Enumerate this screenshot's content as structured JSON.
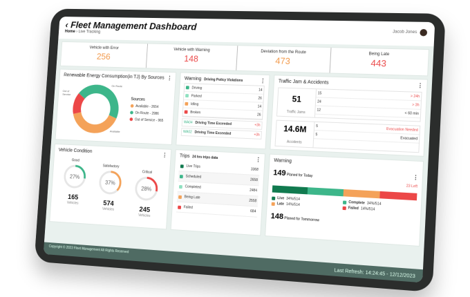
{
  "header": {
    "title": "Fleet Management Dashboard",
    "breadcrumb_home": "Home",
    "breadcrumb_current": "Live Tracking",
    "user": "Jacob Jones"
  },
  "kpis": [
    {
      "label": "Vehicle with Error",
      "value": "256",
      "color": "#f2994a"
    },
    {
      "label": "Vehicle with Warning",
      "value": "148",
      "color": "#eb4b4b"
    },
    {
      "label": "Deviation from the Route",
      "value": "473",
      "color": "#f2994a"
    },
    {
      "label": "Being Late",
      "value": "443",
      "color": "#eb4b4b"
    }
  ],
  "energy": {
    "title": "Renewable Energy Consumption(in TJ) By Sources",
    "legend_title": "Sources",
    "labels": {
      "out": "Out of Service",
      "route": "On Route",
      "avail": "Available"
    },
    "items": [
      {
        "label": "Available - 2654",
        "color": "#f4a259",
        "value": 2654
      },
      {
        "label": "On Route - 2986",
        "color": "#3db68a",
        "value": 2986
      },
      {
        "label": "Out of Service - 965",
        "color": "#ec4747",
        "value": 965
      }
    ]
  },
  "warning": {
    "title": "Warning",
    "subtitle": "Driving Policy Violations",
    "items": [
      {
        "label": "Driving",
        "value": "14",
        "color": "#3db68a"
      },
      {
        "label": "Parked",
        "value": "26",
        "color": "#8fe0c0"
      },
      {
        "label": "Idling",
        "value": "14",
        "color": "#f4a259"
      },
      {
        "label": "Broken",
        "value": "26",
        "color": "#ec4747"
      }
    ],
    "alerts": [
      {
        "code": "WA04",
        "text": "Driving Time Exceeded",
        "delta": "+3h"
      },
      {
        "code": "WA02",
        "text": "Driving Time Exceeded",
        "delta": "+3h"
      }
    ]
  },
  "traffic": {
    "title": "Traffic Jam & Accidents",
    "jams": "51",
    "jams_label": "Traffic Jams",
    "jam_rows": [
      {
        "n": "15",
        "t": "> 24h"
      },
      {
        "n": "24",
        "t": "> 3h"
      },
      {
        "n": "12",
        "t": "< 60 min"
      }
    ],
    "accidents": "14.6M",
    "accidents_label": "Accidents",
    "acc_rows": [
      {
        "n": "5",
        "t": "Evacuation Needed"
      },
      {
        "n": "5",
        "t": "Evacuated"
      }
    ]
  },
  "condition": {
    "title": "Vehicle Condition",
    "unit": "Vehicles",
    "items": [
      {
        "label": "Good",
        "percent": 27,
        "count": "165",
        "color": "#3db68a"
      },
      {
        "label": "Satisfactory",
        "percent": 37,
        "count": "574",
        "color": "#f4a259"
      },
      {
        "label": "Critical",
        "percent": 28,
        "count": "245",
        "color": "#ec4747"
      }
    ]
  },
  "trips": {
    "title": "Trips",
    "subtitle": "24 hrs trips data",
    "items": [
      {
        "label": "Live Trips",
        "value": "3368",
        "color": "#117a4f"
      },
      {
        "label": "Scheduled",
        "value": "2658",
        "color": "#3db68a"
      },
      {
        "label": "Completed",
        "value": "2484",
        "color": "#8fe0c0"
      },
      {
        "label": "Being Late",
        "value": "2558",
        "color": "#f4a259"
      },
      {
        "label": "Failed",
        "value": "684",
        "color": "#ec4747"
      }
    ]
  },
  "warning2": {
    "title": "Warning",
    "today": "149",
    "today_label": "Planed for Today",
    "left": "23 Left",
    "tomorrow": "148",
    "tomorrow_label": "Planed for Tommorrow",
    "segments": [
      {
        "label": "Live",
        "value": "34%/514",
        "color": "#117a4f",
        "share": 25
      },
      {
        "label": "Complete",
        "value": "34%/514",
        "color": "#3db68a",
        "share": 25
      },
      {
        "label": "Late",
        "value": "14%/514",
        "color": "#f4a259",
        "share": 25
      },
      {
        "label": "Failed",
        "value": "14%/514",
        "color": "#ec4747",
        "share": 25
      }
    ]
  },
  "footer": {
    "copyright": "Copyright © 2023 Fleet Management All Rights Reserved",
    "refresh": "Last Refresh: 14:24:45 - 12/12/2023"
  }
}
